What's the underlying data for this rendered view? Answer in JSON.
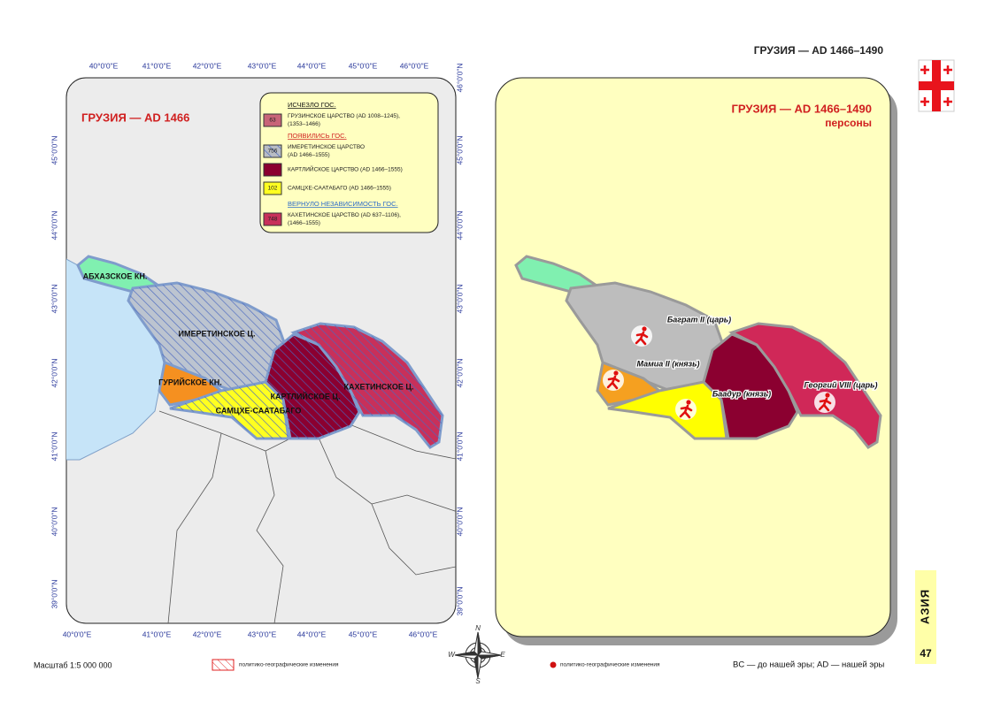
{
  "header": {
    "title": "ГРУЗИЯ — AD 1466–1490"
  },
  "left_map": {
    "title": "ГРУЗИЯ — AD 1466",
    "top_longitudes": [
      "40°0'0\"E",
      "41°0'0\"E",
      "42°0'0\"E",
      "43°0'0\"E",
      "44°0'0\"E",
      "45°0'0\"E",
      "46°0'0\"E"
    ],
    "bottom_longitudes": [
      "40°0'0\"E",
      "41°0'0\"E",
      "42°0'0\"E",
      "43°0'0\"E",
      "44°0'0\"E",
      "45°0'0\"E",
      "46°0'0\"E"
    ],
    "left_latitudes": [
      "45°0'0\"N",
      "44°0'0\"N",
      "43°0'0\"N",
      "42°0'0\"N",
      "41°0'0\"N",
      "40°0'0\"N",
      "39°0'0\"N"
    ],
    "right_latitudes": [
      "46°0'0\"N",
      "45°0'0\"N",
      "44°0'0\"N",
      "43°0'0\"N",
      "42°0'0\"N",
      "41°0'0\"N",
      "40°0'0\"N",
      "39°0'0\"N"
    ],
    "legend": {
      "sections": [
        {
          "heading": "ИСЧЕЗЛО ГОС.",
          "items": [
            {
              "code": 63,
              "color": "#c86478",
              "lines": [
                "ГРУЗИНСКОЕ ЦАРСТВО (AD 1008–1245),",
                "(1353–1466)"
              ]
            }
          ]
        },
        {
          "heading": "ПОЯВИЛИСЬ ГОС.",
          "items": [
            {
              "code": 756,
              "color": "#b8bcc4",
              "lines": [
                "ИМЕРЕТИНСКОЕ ЦАРСТВО",
                "(AD 1466–1555)"
              ]
            },
            {
              "color": "#8b0030",
              "lines": [
                "КАРТЛИЙСКОЕ ЦАРСТВО (AD 1466–1555)"
              ]
            },
            {
              "code": 102,
              "color": "#ffff20",
              "lines": [
                "САМЦХЕ-СААТАБАГО (AD 1466–1555)"
              ]
            }
          ]
        },
        {
          "heading": "ВЕРНУЛО НЕЗАВИСИМОСТЬ ГОС.",
          "items": [
            {
              "code": 748,
              "color": "#c8305a",
              "lines": [
                "КАХЕТИНСКОЕ ЦАРСТВО (AD 637–1106),",
                "(1466–1555)"
              ]
            }
          ]
        }
      ]
    },
    "labels": [
      "АБХАЗСКОЕ КН.",
      "ИМЕРЕТИНСКОЕ Ц.",
      "ГУРИЙСКОЕ КН.",
      "КАРТЛИЙСКОЕ Ц.",
      "КАХЕТИНСКОЕ Ц.",
      "САМЦХЕ-СААТАБАГО"
    ]
  },
  "right_map": {
    "title": "ГРУЗИЯ — AD 1466–1490",
    "subtitle": "персоны",
    "persons": [
      "Баграт II (царь)",
      "Мамиа II (князь)",
      "Баадур (князь)",
      "Георгий VIII (царь)"
    ]
  },
  "compass": [
    "N",
    "E",
    "S",
    "W"
  ],
  "footer": {
    "scale": "Масштаб 1:5 000 000",
    "left_legend": "политико-географические изменения",
    "right_legend": "политико-географические изменения",
    "era_note": "BC — до нашей эры; AD — нашей эры",
    "section": "АЗИЯ",
    "page": "47"
  }
}
